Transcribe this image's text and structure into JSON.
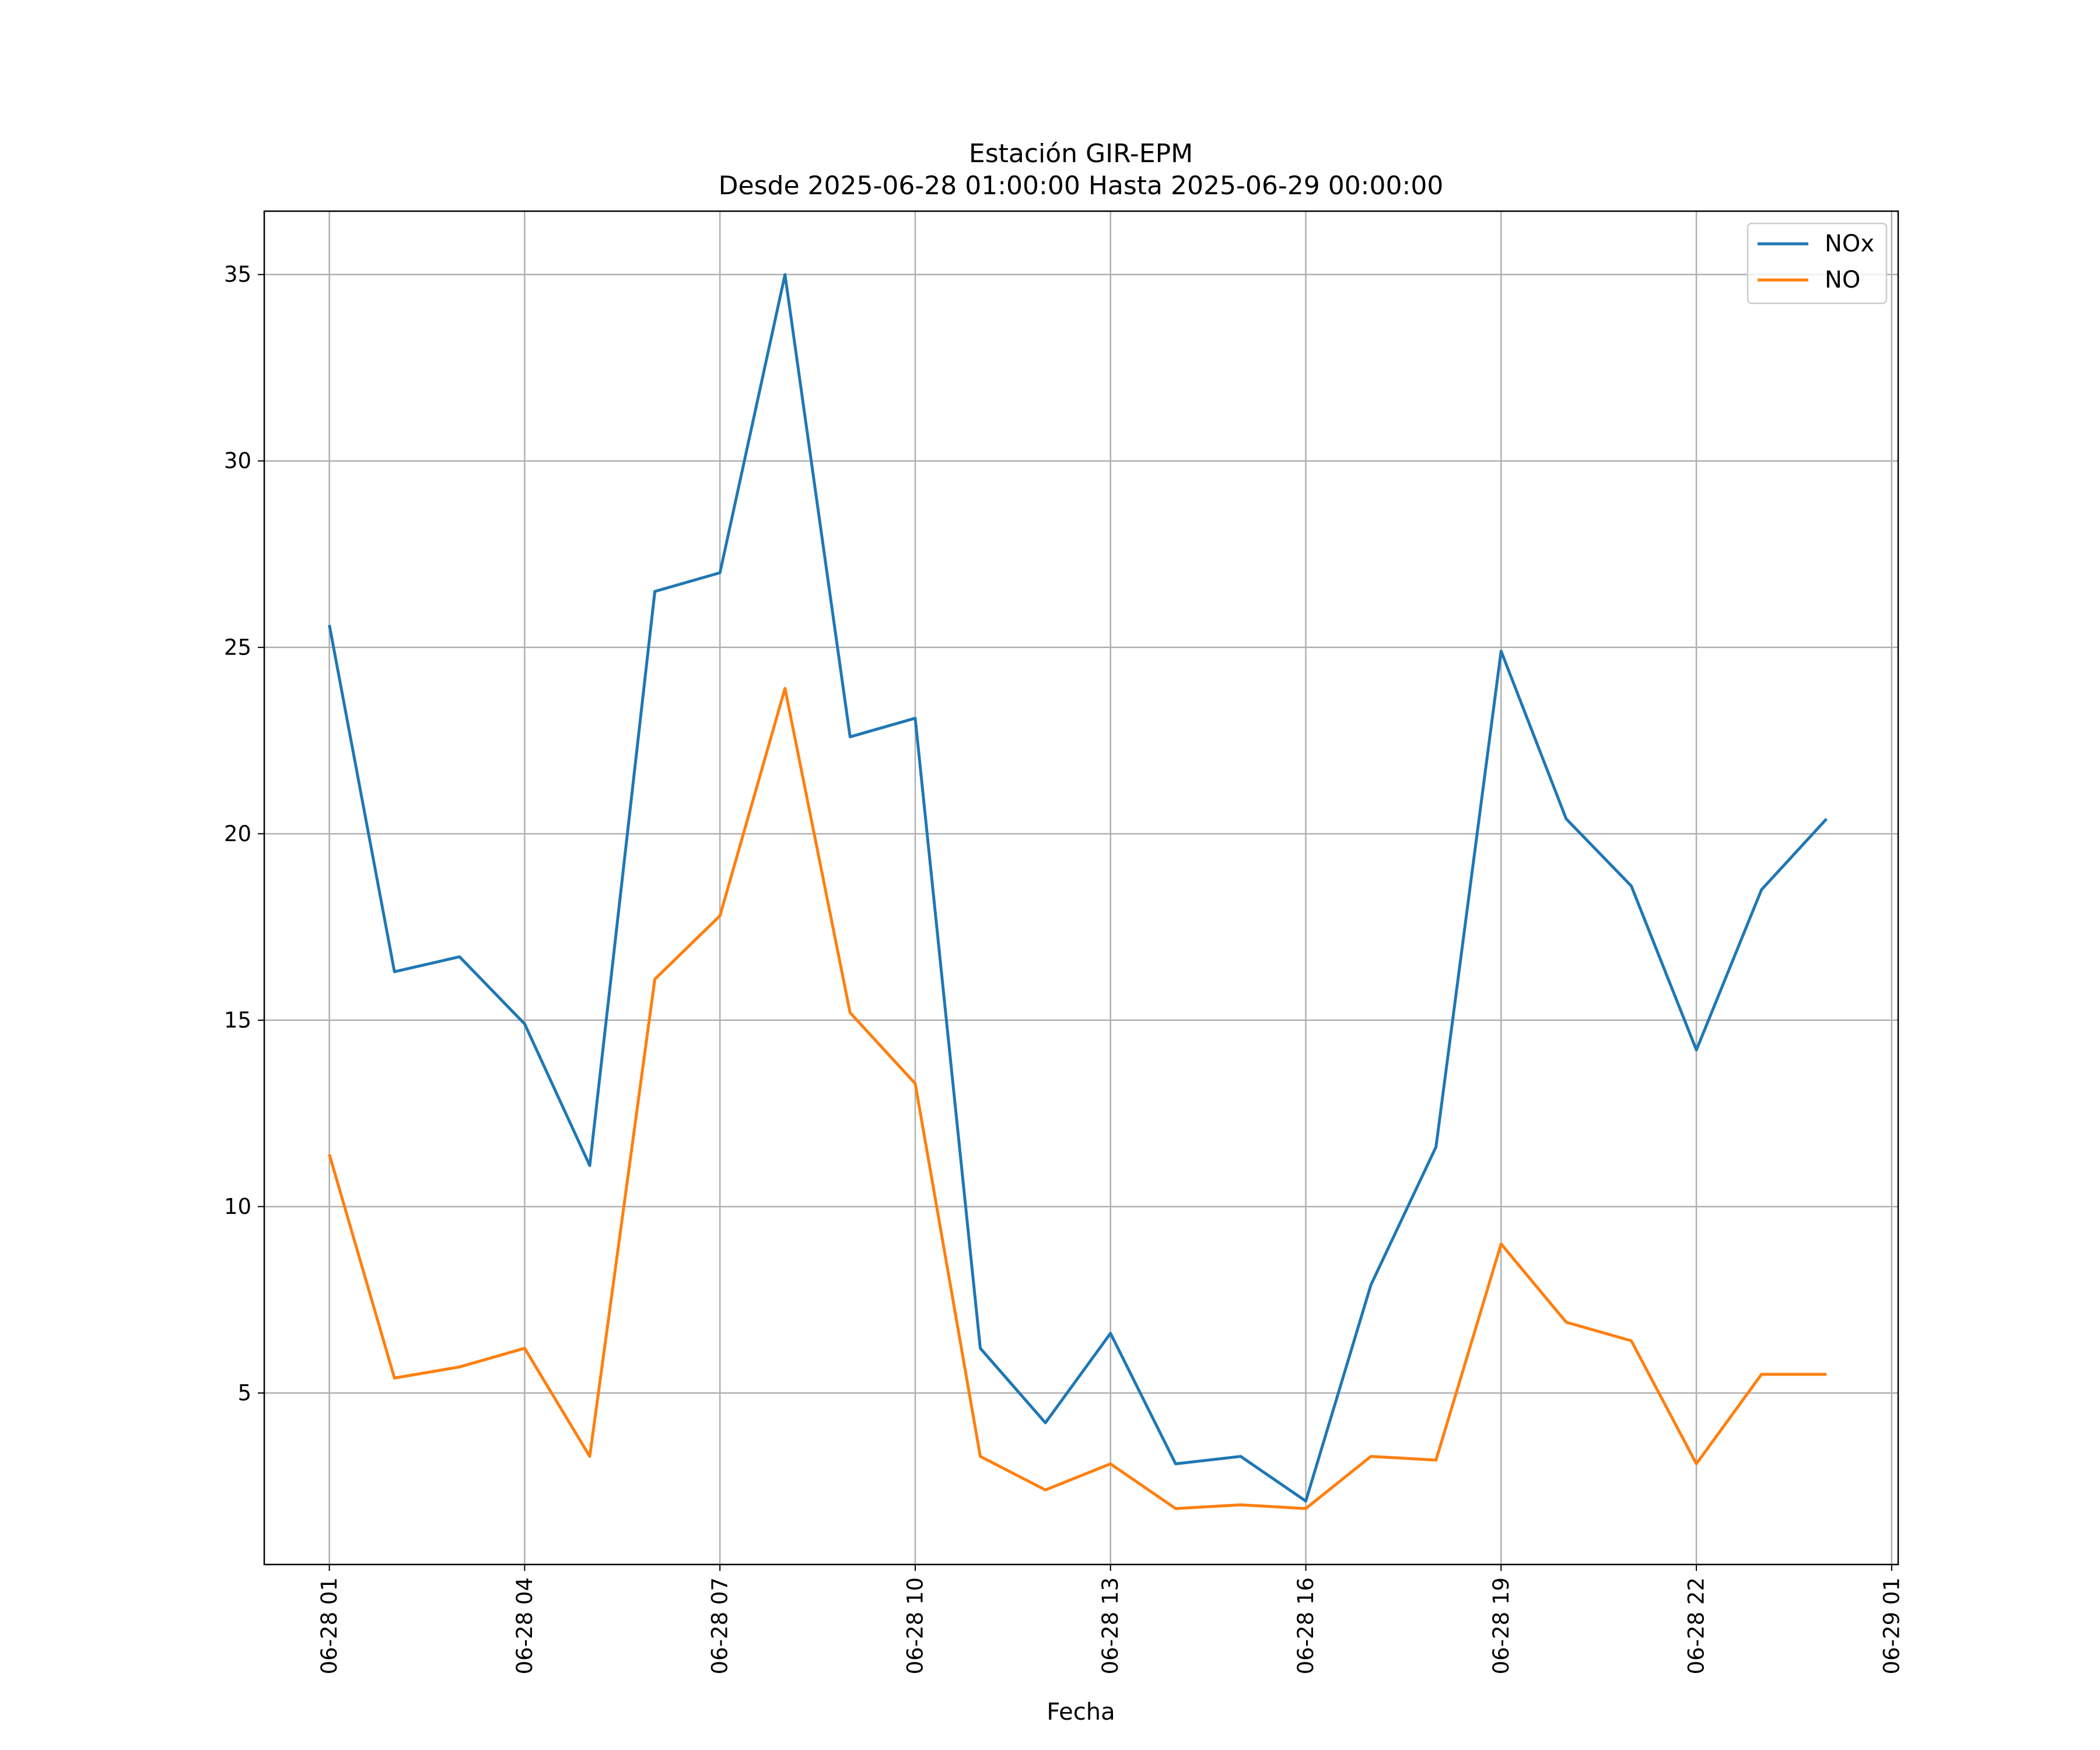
{
  "chart_data": {
    "type": "line",
    "title": "Estación GIR-EPM",
    "subtitle": "Desde 2025-06-28 01:00:00 Hasta 2025-06-29 00:00:00",
    "xlabel": "Fecha",
    "ylabel": "",
    "x": [
      "06-28 01",
      "06-28 02",
      "06-28 03",
      "06-28 04",
      "06-28 05",
      "06-28 06",
      "06-28 07",
      "06-28 08",
      "06-28 09",
      "06-28 10",
      "06-28 11",
      "06-28 12",
      "06-28 13",
      "06-28 14",
      "06-28 15",
      "06-28 16",
      "06-28 17",
      "06-28 18",
      "06-28 19",
      "06-28 20",
      "06-28 21",
      "06-28 22",
      "06-28 23",
      "06-29 00"
    ],
    "x_ticks": [
      "06-28 01",
      "06-28 04",
      "06-28 07",
      "06-28 10",
      "06-28 13",
      "06-28 16",
      "06-28 19",
      "06-28 22",
      "06-29 01"
    ],
    "y_ticks": [
      5,
      10,
      15,
      20,
      25,
      30,
      35
    ],
    "xlim": [
      "06-28 00:00",
      "06-29 01:06"
    ],
    "ylim": [
      0.4,
      36.7
    ],
    "grid": true,
    "legend_position": "top-right",
    "series": [
      {
        "name": "NOx",
        "color": "#1f77b4",
        "values": [
          25.6,
          16.3,
          16.7,
          14.9,
          11.1,
          26.5,
          27.0,
          35.0,
          22.6,
          23.1,
          6.2,
          4.2,
          6.6,
          3.1,
          3.3,
          2.1,
          7.9,
          11.6,
          24.9,
          20.4,
          18.6,
          14.2,
          18.5,
          20.4
        ]
      },
      {
        "name": "NO",
        "color": "#ff7f0e",
        "values": [
          11.4,
          5.4,
          5.7,
          6.2,
          3.3,
          16.1,
          17.8,
          23.9,
          15.2,
          13.3,
          3.3,
          2.4,
          3.1,
          1.9,
          2.0,
          1.9,
          3.3,
          3.2,
          9.0,
          6.9,
          6.4,
          3.1,
          5.5,
          5.5
        ]
      }
    ]
  }
}
